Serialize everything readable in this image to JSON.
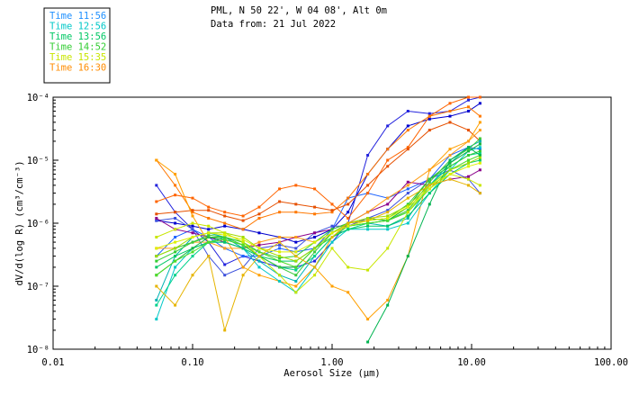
{
  "chart_data": {
    "type": "line",
    "title_lines": [
      "PML, N 50 22', W 04 08', Alt 0m",
      "Data from: 21 Jul 2022"
    ],
    "xlabel": "Aerosol Size (μm)",
    "ylabel": "dV/d(log R) (cm³/cm⁻³)",
    "x_scale": "log",
    "y_scale": "log",
    "xlim": [
      0.01,
      100
    ],
    "ylim": [
      1e-08,
      0.0001
    ],
    "x_ticks": [
      {
        "value": 0.01,
        "label": "0.01"
      },
      {
        "value": 0.1,
        "label": "0.10"
      },
      {
        "value": 1,
        "label": "1.00"
      },
      {
        "value": 10,
        "label": "10.00"
      },
      {
        "value": 100,
        "label": "100.00"
      }
    ],
    "y_ticks": [
      {
        "value": 1e-08,
        "label": "10⁻⁸"
      },
      {
        "value": 1e-07,
        "label": "10⁻⁷"
      },
      {
        "value": 1e-06,
        "label": "10⁻⁶"
      },
      {
        "value": 1e-05,
        "label": "10⁻⁵"
      },
      {
        "value": 0.0001,
        "label": "10⁻⁴"
      }
    ],
    "legend": [
      {
        "label": "Time 11:56",
        "color": "#1e90ff"
      },
      {
        "label": "Time 12:56",
        "color": "#00c8c8"
      },
      {
        "label": "Time 13:56",
        "color": "#00c864"
      },
      {
        "label": "Time 14:52",
        "color": "#32cd32"
      },
      {
        "label": "Time 15:35",
        "color": "#c8e600"
      },
      {
        "label": "Time 16:30",
        "color": "#ff8c00"
      }
    ],
    "x": [
      0.055,
      0.075,
      0.1,
      0.13,
      0.17,
      0.23,
      0.3,
      0.42,
      0.55,
      0.75,
      1.0,
      1.3,
      1.8,
      2.5,
      3.5,
      5.0,
      7.0,
      9.5,
      11.5
    ],
    "series": [
      {
        "name": "s1",
        "color": "#0000cd",
        "values": [
          1.1e-06,
          1e-06,
          9e-07,
          8e-07,
          9e-07,
          8e-07,
          7e-07,
          6e-07,
          5e-07,
          6e-07,
          8e-07,
          1.5e-06,
          6e-06,
          1.5e-05,
          3.5e-05,
          4.5e-05,
          5e-05,
          6e-05,
          8e-05
        ]
      },
      {
        "name": "s2",
        "color": "#2222dd",
        "values": [
          4e-06,
          1.5e-06,
          8e-07,
          5e-07,
          2.2e-07,
          3e-07,
          2.5e-07,
          2e-07,
          2e-07,
          2.5e-07,
          5e-07,
          1e-06,
          1.2e-05,
          3.5e-05,
          6e-05,
          5.5e-05,
          6e-05,
          9e-05,
          0.00012
        ]
      },
      {
        "name": "s3",
        "color": "#1e64ff",
        "values": [
          3e-07,
          6e-07,
          8e-07,
          6e-07,
          4e-07,
          3e-07,
          3e-07,
          4e-07,
          3.5e-07,
          4e-07,
          8e-07,
          2.5e-06,
          3e-06,
          2.5e-06,
          3.5e-06,
          5e-06,
          1.2e-05,
          1.6e-05,
          1.5e-05
        ]
      },
      {
        "name": "s4",
        "color": "#3c50dc",
        "values": [
          1.1e-06,
          1.2e-06,
          8e-07,
          3e-07,
          1.5e-07,
          2e-07,
          4e-07,
          4.5e-07,
          4e-07,
          7e-07,
          9e-07,
          9e-07,
          1.2e-06,
          1.6e-06,
          3e-06,
          5e-06,
          7e-06,
          5e-06,
          3e-06
        ]
      },
      {
        "name": "s5",
        "color": "#8b008b",
        "values": [
          1.2e-06,
          8e-07,
          7e-07,
          6e-07,
          5e-07,
          4e-07,
          4.5e-07,
          5e-07,
          6e-07,
          7e-07,
          8e-07,
          1e-06,
          1.5e-06,
          2e-06,
          4.5e-06,
          4e-06,
          5e-06,
          5.5e-06,
          7e-06
        ]
      },
      {
        "name": "s6",
        "color": "#ff6400",
        "values": [
          2.2e-06,
          2.8e-06,
          2.5e-06,
          1.8e-06,
          1.5e-06,
          1.3e-06,
          1.8e-06,
          3.5e-06,
          4e-06,
          3.5e-06,
          2e-06,
          1.2e-06,
          3e-06,
          1e-05,
          1.6e-05,
          5e-05,
          8e-05,
          0.0001,
          0.00012
        ]
      },
      {
        "name": "s7",
        "color": "#ff7800",
        "values": [
          1e-05,
          4e-06,
          1.5e-06,
          1.2e-06,
          1e-06,
          8e-07,
          1.2e-06,
          1.5e-06,
          1.5e-06,
          1.4e-06,
          1.5e-06,
          2.5e-06,
          6e-06,
          1.5e-05,
          3e-05,
          5e-05,
          6e-05,
          7e-05,
          5e-05
        ]
      },
      {
        "name": "s8",
        "color": "#e65000",
        "values": [
          1.4e-06,
          1.5e-06,
          1.6e-06,
          1.6e-06,
          1.3e-06,
          1.1e-06,
          1.4e-06,
          2.2e-06,
          2e-06,
          1.8e-06,
          1.6e-06,
          2e-06,
          4e-06,
          8e-06,
          1.5e-05,
          3e-05,
          4e-05,
          3e-05,
          2e-05
        ]
      },
      {
        "name": "s9",
        "color": "#ffa000",
        "values": [
          1e-05,
          6e-06,
          1.3e-06,
          5e-07,
          6e-07,
          2e-07,
          1.5e-07,
          1.2e-07,
          1e-07,
          2e-07,
          1e-07,
          8e-08,
          3e-08,
          6e-08,
          3e-07,
          7e-06,
          1.5e-05,
          2e-05,
          4e-05
        ]
      },
      {
        "name": "s10",
        "color": "#ff9f1a",
        "values": [
          4e-07,
          4e-07,
          5e-07,
          5e-07,
          4e-07,
          4e-07,
          5e-07,
          6e-07,
          6e-07,
          5e-07,
          7e-07,
          1e-06,
          1.5e-06,
          2.5e-06,
          4e-06,
          7e-06,
          1.2e-05,
          2e-05,
          3e-05
        ]
      },
      {
        "name": "s11",
        "color": "#00c8c8",
        "values": [
          3e-08,
          2e-07,
          4e-07,
          5e-07,
          5e-07,
          4e-07,
          2e-07,
          1.2e-07,
          8e-08,
          2e-07,
          5e-07,
          8e-07,
          8e-07,
          8e-07,
          1e-06,
          3e-06,
          7e-06,
          1.4e-05,
          1.6e-05
        ]
      },
      {
        "name": "s12",
        "color": "#00b4b4",
        "values": [
          6e-08,
          3e-07,
          6e-07,
          7e-07,
          6e-07,
          4e-07,
          2.5e-07,
          1.5e-07,
          1.2e-07,
          3e-07,
          6e-07,
          9e-07,
          1e-06,
          9e-07,
          1.2e-06,
          4e-06,
          9e-06,
          1.6e-05,
          2e-05
        ]
      },
      {
        "name": "s13",
        "color": "#00d28c",
        "values": [
          5e-08,
          1.5e-07,
          3e-07,
          5e-07,
          6e-07,
          5e-07,
          3e-07,
          2e-07,
          1.8e-07,
          3e-07,
          6e-07,
          8e-07,
          1e-06,
          1.1e-06,
          1.5e-06,
          4e-06,
          8e-06,
          1.2e-05,
          1.3e-05
        ]
      },
      {
        "name": "s14",
        "color": "#00c864",
        "values": [
          2e-07,
          3e-07,
          4e-07,
          5e-07,
          5e-07,
          4e-07,
          3e-07,
          2.5e-07,
          2.5e-07,
          4e-07,
          6e-07,
          8e-07,
          9e-07,
          9e-07,
          1.3e-06,
          3e-06,
          6e-06,
          9e-06,
          1e-05
        ]
      },
      {
        "name": "s15",
        "color": "#14b43c",
        "values": [
          1.5e-07,
          2.5e-07,
          4e-07,
          6e-07,
          5.5e-07,
          4.5e-07,
          3e-07,
          2e-07,
          2e-07,
          4e-07,
          7e-07,
          1e-06,
          1.2e-06,
          1.1e-06,
          1.8e-06,
          5e-06,
          9e-06,
          1.4e-05,
          1.8e-05
        ]
      },
      {
        "name": "s16",
        "color": "#32cd32",
        "values": [
          2.5e-07,
          3.5e-07,
          5e-07,
          6e-07,
          6e-07,
          5e-07,
          3.5e-07,
          2.8e-07,
          3e-07,
          5e-07,
          8e-07,
          1e-06,
          1.1e-06,
          1.2e-06,
          2e-06,
          5e-06,
          8e-06,
          1.2e-05,
          1.4e-05
        ]
      },
      {
        "name": "s17",
        "color": "#3cc83c",
        "values": [
          3e-07,
          4e-07,
          5e-07,
          6.5e-07,
          6e-07,
          4.5e-07,
          3e-07,
          2e-07,
          1.5e-07,
          3.5e-07,
          7e-07,
          9e-07,
          1e-06,
          1.1e-06,
          1.6e-06,
          4.5e-06,
          1e-05,
          1.5e-05,
          2.2e-05
        ]
      },
      {
        "name": "s18",
        "color": "#50dc28",
        "values": [
          1.5e-07,
          2.5e-07,
          3.5e-07,
          5e-07,
          5.5e-07,
          4.5e-07,
          3.5e-07,
          2.5e-07,
          2e-07,
          4e-07,
          6e-07,
          9e-07,
          1e-06,
          1.1e-06,
          1.5e-06,
          3.5e-06,
          7e-06,
          1e-05,
          1.2e-05
        ]
      },
      {
        "name": "s19",
        "color": "#00b450",
        "values": [
          null,
          null,
          null,
          null,
          null,
          null,
          null,
          null,
          null,
          null,
          null,
          null,
          1.3e-08,
          5e-08,
          3e-07,
          2e-06,
          1e-05,
          1.6e-05,
          1.2e-05
        ]
      },
      {
        "name": "s20",
        "color": "#a0dc00",
        "values": [
          3e-07,
          4e-07,
          6e-07,
          7e-07,
          7e-07,
          6e-07,
          4e-07,
          3e-07,
          2.5e-07,
          4e-07,
          7e-07,
          1e-06,
          1.2e-06,
          1.3e-06,
          1.9e-06,
          4e-06,
          7e-06,
          9e-06,
          1.1e-05
        ]
      },
      {
        "name": "s21",
        "color": "#c8e600",
        "values": [
          6e-07,
          8e-07,
          1e-06,
          9e-07,
          7e-07,
          5e-07,
          3e-07,
          1.5e-07,
          8e-08,
          1.5e-07,
          4e-07,
          2e-07,
          1.8e-07,
          4e-07,
          1.5e-06,
          4e-06,
          6e-06,
          5e-06,
          4e-06
        ]
      },
      {
        "name": "s22",
        "color": "#dcf000",
        "values": [
          4e-07,
          5e-07,
          6e-07,
          7e-07,
          6.5e-07,
          5.5e-07,
          4e-07,
          3.5e-07,
          3.5e-07,
          5e-07,
          7e-07,
          9e-07,
          1.1e-06,
          1.2e-06,
          1.8e-06,
          3.5e-06,
          6e-06,
          8e-06,
          9e-06
        ]
      },
      {
        "name": "s23",
        "color": "#e6b400",
        "values": [
          1e-07,
          5e-08,
          1.5e-07,
          3e-07,
          2e-08,
          1.5e-07,
          3e-07,
          5e-07,
          3e-07,
          2e-07,
          6e-07,
          1e-06,
          1.1e-06,
          1.5e-06,
          2.5e-06,
          4e-06,
          5e-06,
          4e-06,
          3e-06
        ]
      }
    ]
  }
}
